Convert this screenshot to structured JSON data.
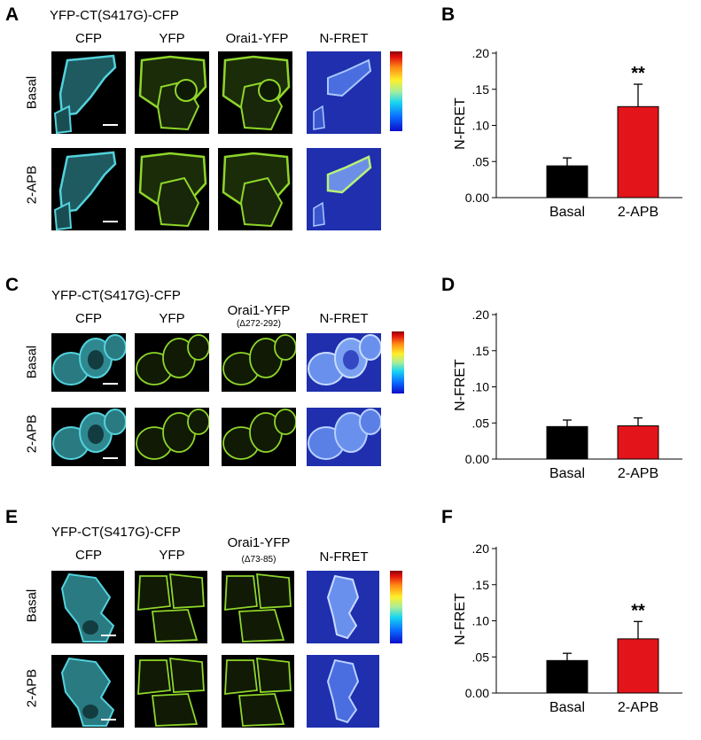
{
  "panels": [
    {
      "letter": "A",
      "construct": "YFP-CT(S417G)-CFP",
      "channels": [
        "CFP",
        "YFP",
        "Orai1-YFP",
        "N-FRET"
      ],
      "channel_sub": "",
      "rows": [
        "Basal",
        "2-APB"
      ]
    },
    {
      "letter": "C",
      "construct": "YFP-CT(S417G)-CFP",
      "channels": [
        "CFP",
        "YFP",
        "Orai1-YFP",
        "N-FRET"
      ],
      "channel_sub": "(Δ272-292)",
      "rows": [
        "Basal",
        "2-APB"
      ]
    },
    {
      "letter": "E",
      "construct": "YFP-CT(S417G)-CFP",
      "channels": [
        "CFP",
        "YFP",
        "Orai1-YFP",
        "N-FRET"
      ],
      "channel_sub": "(Δ73-85)",
      "rows": [
        "Basal",
        "2-APB"
      ]
    }
  ],
  "colors": {
    "cfp": "#53d2dc",
    "yfp": "#8ed62a",
    "nfret_bg": "#1f2fae",
    "nfret_cell": "#a9c8ff",
    "basal_bar": "#000000",
    "apb_bar": "#e3141a"
  },
  "chart_data": [
    {
      "panel": "B",
      "type": "bar",
      "categories": [
        "Basal",
        "2-APB"
      ],
      "values": [
        0.044,
        0.126
      ],
      "errors": [
        0.011,
        0.031
      ],
      "annotations": [
        "",
        "**"
      ],
      "ylabel": "N-FRET",
      "ylim": [
        0,
        0.2
      ],
      "yticks": [
        0.0,
        0.05,
        0.1,
        0.15,
        0.2
      ],
      "yticklabels": [
        "0.00",
        ".05",
        ".10",
        ".15",
        ".20"
      ]
    },
    {
      "panel": "D",
      "type": "bar",
      "categories": [
        "Basal",
        "2-APB"
      ],
      "values": [
        0.045,
        0.046
      ],
      "errors": [
        0.009,
        0.011
      ],
      "annotations": [
        "",
        ""
      ],
      "ylabel": "N-FRET",
      "ylim": [
        0,
        0.2
      ],
      "yticks": [
        0.0,
        0.05,
        0.1,
        0.15,
        0.2
      ],
      "yticklabels": [
        "0.00",
        ".05",
        ".10",
        ".15",
        ".20"
      ]
    },
    {
      "panel": "F",
      "type": "bar",
      "categories": [
        "Basal",
        "2-APB"
      ],
      "values": [
        0.045,
        0.075
      ],
      "errors": [
        0.01,
        0.024
      ],
      "annotations": [
        "",
        "**"
      ],
      "ylabel": "N-FRET",
      "ylim": [
        0,
        0.2
      ],
      "yticks": [
        0.0,
        0.05,
        0.1,
        0.15,
        0.2
      ],
      "yticklabels": [
        "0.00",
        ".05",
        ".10",
        ".15",
        ".20"
      ]
    }
  ]
}
